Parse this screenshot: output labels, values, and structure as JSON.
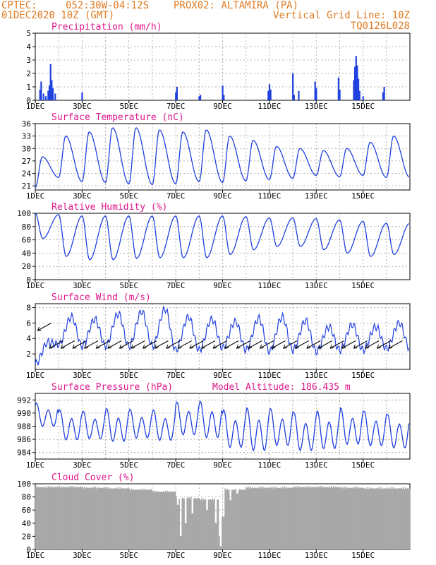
{
  "header": {
    "source": "CPTEC:",
    "coords": "052:30W-04:12S",
    "station": "PROX02: ALTAMIRA (PA)",
    "datetime": "01DEC2020 10Z (GMT)",
    "grid_note": "Vertical Grid Line: 10Z",
    "run_id": "TQ0126L028"
  },
  "colors": {
    "header": "#e07a1f",
    "title": "#e0168c",
    "series": "#2040e0",
    "cloud": "#a8a8a8"
  },
  "chart_data": [
    {
      "type": "bar",
      "title": "Precipitation (mm/h)",
      "xticks": [
        "1DEC",
        "3DEC",
        "5DEC",
        "7DEC",
        "9DEC",
        "11DEC",
        "13DEC",
        "15DEC"
      ],
      "ylim": [
        0,
        5
      ],
      "yticks": [
        "0",
        "1",
        "2",
        "3",
        "4",
        "5"
      ],
      "grid": true,
      "events": [
        [
          0.2,
          0.8
        ],
        [
          0.25,
          1.4
        ],
        [
          0.35,
          0.5
        ],
        [
          0.45,
          0.3
        ],
        [
          0.55,
          0.7
        ],
        [
          0.6,
          1.1
        ],
        [
          0.65,
          2.7
        ],
        [
          0.7,
          1.5
        ],
        [
          0.75,
          0.9
        ],
        [
          0.85,
          0.5
        ],
        [
          2.0,
          0.6
        ],
        [
          6.0,
          0.6
        ],
        [
          6.05,
          1.0
        ],
        [
          7.0,
          0.3
        ],
        [
          7.05,
          0.4
        ],
        [
          8.0,
          1.1
        ],
        [
          8.05,
          0.4
        ],
        [
          9.95,
          0.7
        ],
        [
          10.0,
          1.2
        ],
        [
          10.05,
          0.8
        ],
        [
          11.0,
          2.0
        ],
        [
          11.05,
          0.4
        ],
        [
          11.25,
          0.7
        ],
        [
          11.95,
          1.4
        ],
        [
          12.0,
          0.9
        ],
        [
          12.95,
          1.7
        ],
        [
          13.0,
          0.8
        ],
        [
          13.6,
          1.5
        ],
        [
          13.65,
          2.5
        ],
        [
          13.7,
          3.3
        ],
        [
          13.75,
          2.6
        ],
        [
          13.8,
          1.6
        ],
        [
          13.85,
          0.7
        ],
        [
          14.0,
          0.3
        ],
        [
          14.85,
          0.6
        ],
        [
          14.9,
          1.0
        ]
      ]
    },
    {
      "type": "line",
      "title": "Surface Temperature (nC)",
      "xticks": [
        "1DEC",
        "3DEC",
        "5DEC",
        "7DEC",
        "9DEC",
        "11DEC",
        "13DEC",
        "15DEC"
      ],
      "ylim": [
        20,
        36
      ],
      "yticks": [
        "21",
        "24",
        "27",
        "30",
        "33",
        "36"
      ],
      "grid": true,
      "min_temps": [
        20.5,
        23,
        22,
        21.8,
        21.5,
        21.3,
        21.5,
        22,
        21.8,
        22.2,
        22.5,
        22.8,
        23.5,
        23.2,
        23.5,
        23
      ],
      "max_temps": [
        28,
        33,
        34,
        35,
        35,
        34.5,
        34,
        34.5,
        33,
        32,
        30.5,
        30,
        29.5,
        30,
        31.5,
        33
      ]
    },
    {
      "type": "line",
      "title": "Relative Humidity (%)",
      "xticks": [
        "1DEC",
        "3DEC",
        "5DEC",
        "7DEC",
        "9DEC",
        "11DEC",
        "13DEC",
        "15DEC"
      ],
      "ylim": [
        0,
        100
      ],
      "yticks": [
        "0",
        "20",
        "40",
        "60",
        "80",
        "100"
      ],
      "grid": true,
      "max_rh": [
        100,
        98,
        96,
        96,
        96,
        96,
        96,
        96,
        96,
        95,
        93,
        93,
        92,
        90,
        88,
        85
      ],
      "min_rh": [
        62,
        35,
        30,
        30,
        32,
        33,
        33,
        33,
        38,
        45,
        50,
        50,
        45,
        40,
        35,
        38
      ]
    },
    {
      "type": "line",
      "title": "Surface Wind (m/s)",
      "xticks": [
        "1DEC",
        "3DEC",
        "5DEC",
        "7DEC",
        "9DEC",
        "11DEC",
        "13DEC",
        "15DEC"
      ],
      "ylim": [
        0,
        8.5
      ],
      "yticks": [
        "2",
        "4",
        "6",
        "8"
      ],
      "grid": true,
      "daily_low": [
        0.7,
        3.2,
        3.0,
        3.0,
        3.0,
        3.0,
        2.5,
        2.5,
        2.8,
        2.5,
        2.3,
        2.5,
        2.3,
        2.5,
        2.5,
        2.7
      ],
      "daily_high": [
        3.5,
        6.8,
        6.5,
        7.2,
        7.5,
        7.8,
        6.8,
        6.5,
        6.2,
        6.6,
        6.8,
        6.3,
        5.5,
        5.8,
        5.5,
        6.0
      ],
      "vectors_direction": "from east-northeast"
    },
    {
      "type": "line",
      "title": "Surface Pressure (hPa)",
      "annotation": "Model Altitude: 186.435  m",
      "xticks": [
        "1DEC",
        "3DEC",
        "5DEC",
        "7DEC",
        "9DEC",
        "11DEC",
        "13DEC",
        "15DEC"
      ],
      "ylim": [
        983,
        993
      ],
      "yticks": [
        "984",
        "986",
        "988",
        "990",
        "992"
      ],
      "grid": true,
      "daily_max": [
        991.5,
        990.5,
        990.3,
        990.7,
        990.6,
        990.5,
        991.7,
        991.8,
        990.5,
        990.8,
        990.7,
        990.1,
        990.3,
        990.8,
        990.3,
        989.8
      ],
      "daily_min": [
        987.5,
        985.3,
        985.5,
        985.0,
        985.6,
        985.2,
        986.0,
        985.5,
        984.0,
        983.4,
        984.3,
        983.5,
        983.8,
        984.5,
        984.3,
        984.0
      ]
    },
    {
      "type": "bar",
      "title": "Cloud Cover (%)",
      "xticks": [
        "1DEC",
        "3DEC",
        "5DEC",
        "7DEC",
        "9DEC",
        "11DEC",
        "13DEC",
        "15DEC"
      ],
      "ylim": [
        0,
        100
      ],
      "yticks": [
        "0",
        "20",
        "40",
        "60",
        "80",
        "100"
      ],
      "grid": true,
      "typical": [
        97,
        97,
        96,
        95,
        93,
        90,
        80,
        78,
        93,
        96,
        96,
        97,
        97,
        96,
        95,
        95
      ],
      "dips": [
        [
          6.05,
          68
        ],
        [
          6.2,
          20
        ],
        [
          6.4,
          40
        ],
        [
          6.7,
          55
        ],
        [
          7.3,
          60
        ],
        [
          7.7,
          40
        ],
        [
          7.85,
          20
        ],
        [
          7.9,
          5
        ],
        [
          8.0,
          50
        ],
        [
          8.3,
          75
        ],
        [
          8.6,
          85
        ]
      ]
    }
  ]
}
